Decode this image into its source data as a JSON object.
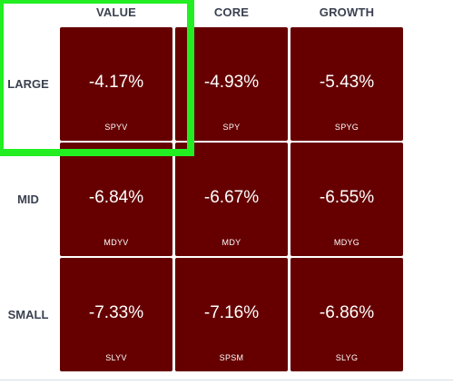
{
  "columns": [
    "VALUE",
    "CORE",
    "GROWTH"
  ],
  "rows": [
    {
      "label": "LARGE",
      "cells": [
        {
          "value": "-4.17%",
          "ticker": "SPYV"
        },
        {
          "value": "-4.93%",
          "ticker": "SPY"
        },
        {
          "value": "-5.43%",
          "ticker": "SPYG"
        }
      ]
    },
    {
      "label": "MID",
      "cells": [
        {
          "value": "-6.84%",
          "ticker": "MDYV"
        },
        {
          "value": "-6.67%",
          "ticker": "MDY"
        },
        {
          "value": "-6.55%",
          "ticker": "MDYG"
        }
      ]
    },
    {
      "label": "SMALL",
      "cells": [
        {
          "value": "-7.33%",
          "ticker": "SLYV"
        },
        {
          "value": "-7.16%",
          "ticker": "SPSM"
        },
        {
          "value": "-6.86%",
          "ticker": "SLYG"
        }
      ]
    }
  ]
}
